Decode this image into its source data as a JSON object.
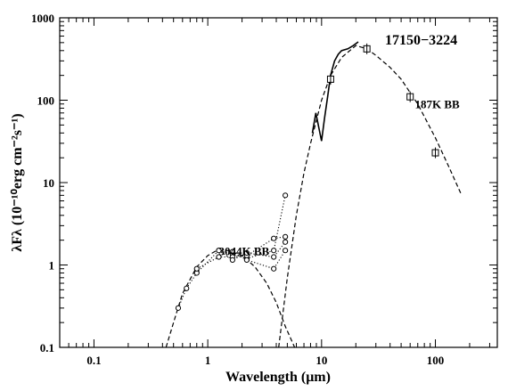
{
  "chart_data": {
    "type": "line",
    "title": "17150−3224",
    "xlabel": "Wavelength (μm)",
    "ylabel": "λFλ (10⁻¹⁰erg cm⁻²s⁻¹)",
    "x_scale": "log",
    "y_scale": "log",
    "xlim": [
      0.05,
      350
    ],
    "ylim": [
      0.1,
      1000
    ],
    "x_ticks": [
      {
        "value": 0.1,
        "label": "0.1"
      },
      {
        "value": 1,
        "label": "1"
      },
      {
        "value": 10,
        "label": "10"
      },
      {
        "value": 100,
        "label": "100"
      }
    ],
    "y_ticks": [
      {
        "value": 0.1,
        "label": "0.1"
      },
      {
        "value": 1,
        "label": "1"
      },
      {
        "value": 10,
        "label": "10"
      },
      {
        "value": 100,
        "label": "100"
      },
      {
        "value": 1000,
        "label": "1000"
      }
    ],
    "annotations": [
      {
        "text": "3044K BB",
        "x": 1.25,
        "y": 1.45
      },
      {
        "text": "187K BB",
        "x": 66,
        "y": 88
      }
    ],
    "series": [
      {
        "style": "dashed",
        "points": [
          [
            0.43,
            0.1
          ],
          [
            0.5,
            0.2
          ],
          [
            0.6,
            0.45
          ],
          [
            0.8,
            0.95
          ],
          [
            1.0,
            1.3
          ],
          [
            1.2,
            1.5
          ],
          [
            1.5,
            1.5
          ],
          [
            2.0,
            1.3
          ],
          [
            2.6,
            0.95
          ],
          [
            3.3,
            0.6
          ],
          [
            4.0,
            0.35
          ],
          [
            4.8,
            0.18
          ],
          [
            5.8,
            0.1
          ]
        ]
      },
      {
        "style": "dashed",
        "points": [
          [
            4.2,
            0.1
          ],
          [
            5.0,
            0.7
          ],
          [
            6.0,
            4
          ],
          [
            7.0,
            13
          ],
          [
            8.0,
            30
          ],
          [
            10.0,
            100
          ],
          [
            12.0,
            200
          ],
          [
            15.0,
            330
          ],
          [
            20.0,
            460
          ],
          [
            25.0,
            420
          ],
          [
            30.0,
            350
          ],
          [
            40.0,
            250
          ],
          [
            50.0,
            180
          ],
          [
            70.0,
            90
          ],
          [
            100.0,
            35
          ],
          [
            130.0,
            16
          ],
          [
            170.0,
            7
          ]
        ]
      },
      {
        "style": "solid",
        "points": [
          [
            8.3,
            40
          ],
          [
            8.9,
            70
          ],
          [
            9.5,
            45
          ],
          [
            10.0,
            32
          ],
          [
            10.6,
            60
          ],
          [
            11.3,
            110
          ],
          [
            12.0,
            200
          ],
          [
            13.0,
            300
          ],
          [
            14.0,
            360
          ],
          [
            15.0,
            400
          ],
          [
            17.0,
            420
          ],
          [
            19.0,
            460
          ],
          [
            21.0,
            510
          ]
        ]
      },
      {
        "style": "dotted-open-circles",
        "points": [
          [
            0.55,
            0.3
          ],
          [
            0.65,
            0.52
          ],
          [
            0.8,
            0.8
          ],
          [
            1.25,
            1.5
          ],
          [
            1.65,
            1.35
          ],
          [
            2.2,
            1.2
          ],
          [
            3.8,
            1.5
          ],
          [
            4.8,
            7
          ]
        ]
      },
      {
        "style": "dotted-open-circles",
        "points": [
          [
            0.8,
            0.9
          ],
          [
            1.25,
            1.25
          ],
          [
            1.65,
            1.25
          ],
          [
            2.2,
            1.3
          ],
          [
            3.8,
            2.1
          ],
          [
            4.8,
            2.2
          ]
        ]
      },
      {
        "style": "dotted-open-circles",
        "points": [
          [
            1.25,
            1.5
          ],
          [
            1.65,
            1.15
          ],
          [
            2.2,
            1.4
          ],
          [
            3.8,
            1.25
          ],
          [
            4.8,
            1.9
          ]
        ]
      },
      {
        "style": "dotted-open-circles",
        "points": [
          [
            1.65,
            1.45
          ],
          [
            2.2,
            1.15
          ],
          [
            3.8,
            0.9
          ],
          [
            4.8,
            1.5
          ]
        ]
      },
      {
        "style": "open-squares",
        "points": [
          [
            12,
            180
          ],
          [
            25,
            420
          ],
          [
            60,
            110
          ],
          [
            100,
            23
          ]
        ]
      }
    ]
  }
}
